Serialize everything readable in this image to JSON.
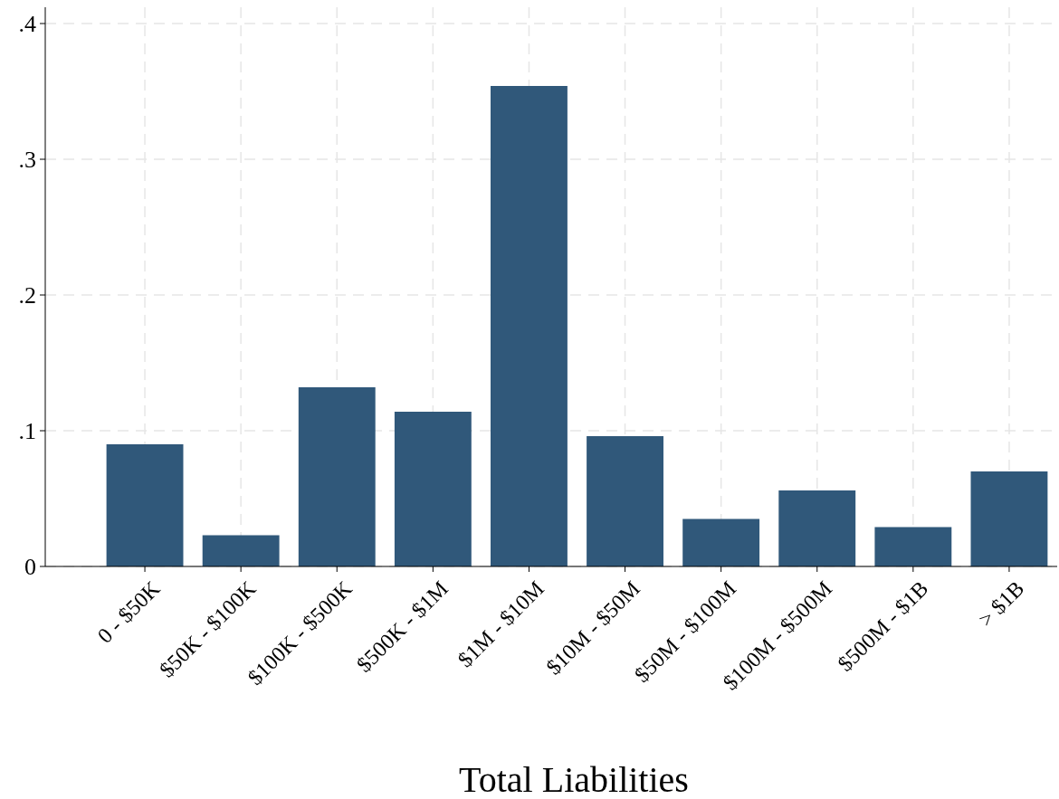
{
  "chart_data": {
    "type": "bar",
    "xlabel": "Total Liabilities",
    "categories": [
      "0 - $50K",
      "$50K - $100K",
      "$100K - $500K",
      "$500K - $1M",
      "$1M - $10M",
      "$10M - $50M",
      "$50M - $100M",
      "$100M - $500M",
      "$500M - $1B",
      "> $1B"
    ],
    "values": [
      0.09,
      0.023,
      0.132,
      0.114,
      0.354,
      0.096,
      0.035,
      0.056,
      0.029,
      0.07
    ],
    "color": "#30587a",
    "ylim": [
      0,
      0.412
    ],
    "yticks": [
      {
        "value": 0,
        "label": "0"
      },
      {
        "value": 0.1,
        "label": ".1"
      },
      {
        "value": 0.2,
        "label": ".2"
      },
      {
        "value": 0.3,
        "label": ".3"
      },
      {
        "value": 0.4,
        "label": ".4"
      }
    ],
    "grid": true
  }
}
